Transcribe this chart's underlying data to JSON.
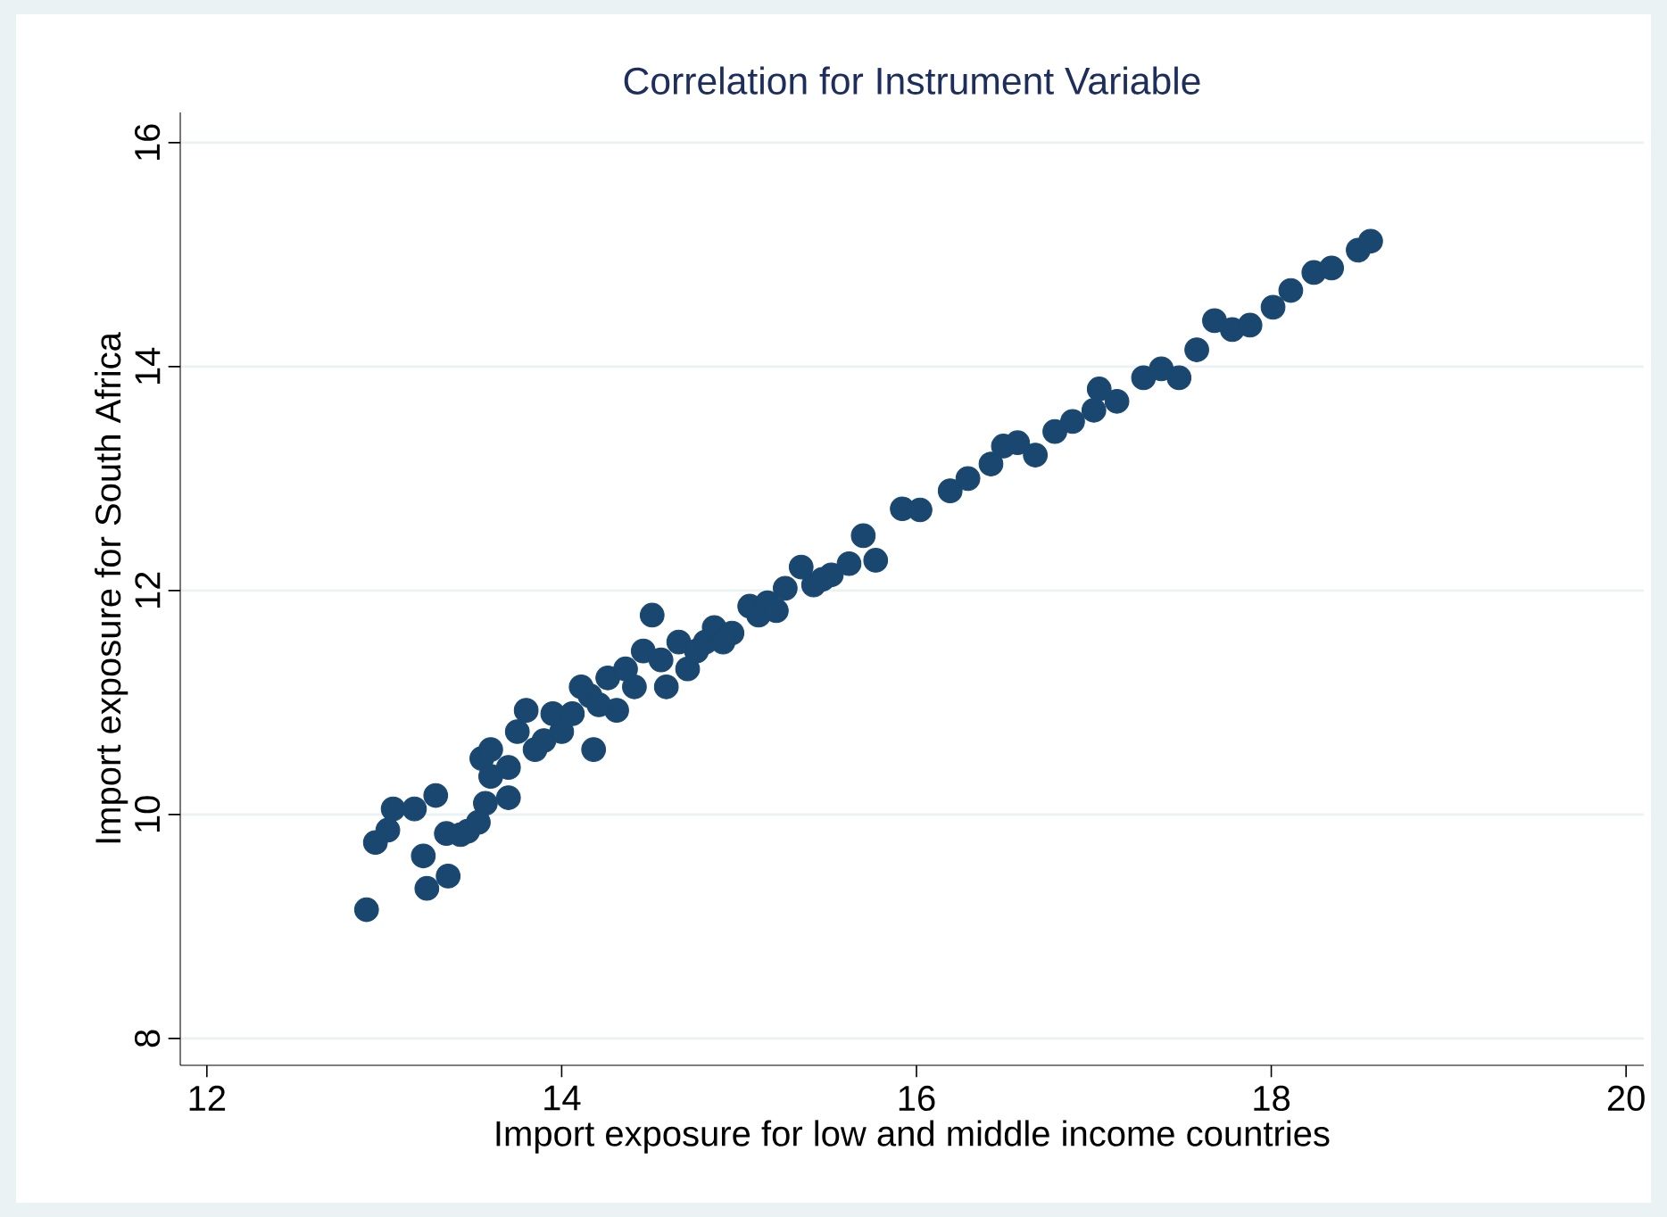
{
  "chart_data": {
    "type": "scatter",
    "title": "Correlation for Instrument Variable",
    "xlabel": "Import exposure for low and middle income countries",
    "ylabel": "Import exposure for South Africa",
    "x": [
      12.9,
      12.95,
      13.02,
      13.05,
      13.17,
      13.22,
      13.24,
      13.29,
      13.36,
      13.35,
      13.43,
      13.47,
      13.53,
      13.57,
      13.55,
      13.6,
      13.7,
      13.75,
      13.85,
      13.8,
      13.95,
      14.16,
      14.18,
      14.26,
      14.36,
      14.31,
      14.46,
      14.51,
      14.59,
      14.66,
      14.71,
      14.81,
      14.86,
      14.96,
      15.06,
      15.16,
      15.26,
      15.35,
      15.42,
      15.52,
      15.62,
      15.7,
      15.77,
      15.92,
      16.02,
      16.19,
      16.29,
      16.42,
      16.49,
      16.57,
      16.67,
      16.78,
      16.88,
      17.0,
      17.03,
      17.13,
      17.28,
      17.38,
      17.48,
      17.58,
      17.68,
      17.78,
      17.88,
      18.01,
      18.11,
      18.24,
      18.34,
      18.49,
      18.56,
      13.6,
      13.7,
      13.9,
      14.06,
      14.0,
      14.11,
      14.21,
      14.41,
      14.56,
      14.76,
      14.91,
      15.11,
      15.21,
      15.47
    ],
    "values": [
      9.15,
      9.75,
      9.86,
      10.05,
      10.05,
      9.63,
      9.34,
      10.17,
      9.45,
      9.83,
      9.82,
      9.85,
      9.93,
      10.1,
      10.5,
      10.58,
      10.15,
      10.74,
      10.58,
      10.93,
      10.9,
      11.06,
      10.58,
      11.22,
      11.3,
      10.93,
      11.46,
      11.78,
      11.14,
      11.54,
      11.3,
      11.54,
      11.67,
      11.62,
      11.86,
      11.89,
      12.02,
      12.21,
      12.05,
      12.14,
      12.24,
      12.49,
      12.27,
      12.73,
      12.72,
      12.89,
      13.0,
      13.13,
      13.29,
      13.32,
      13.21,
      13.42,
      13.51,
      13.61,
      13.8,
      13.69,
      13.9,
      13.98,
      13.9,
      14.15,
      14.41,
      14.33,
      14.37,
      14.53,
      14.68,
      14.84,
      14.88,
      15.04,
      15.12,
      10.34,
      10.42,
      10.66,
      10.9,
      10.74,
      11.14,
      10.98,
      11.14,
      11.38,
      11.46,
      11.54,
      11.78,
      11.82,
      12.1
    ],
    "color": "#1a476f",
    "grid": "y",
    "xlim": [
      11.85,
      20.1
    ],
    "ylim": [
      7.76,
      16.27
    ],
    "xticks": [
      12,
      14,
      16,
      18,
      20
    ],
    "yticks": [
      8,
      10,
      12,
      14,
      16
    ]
  }
}
